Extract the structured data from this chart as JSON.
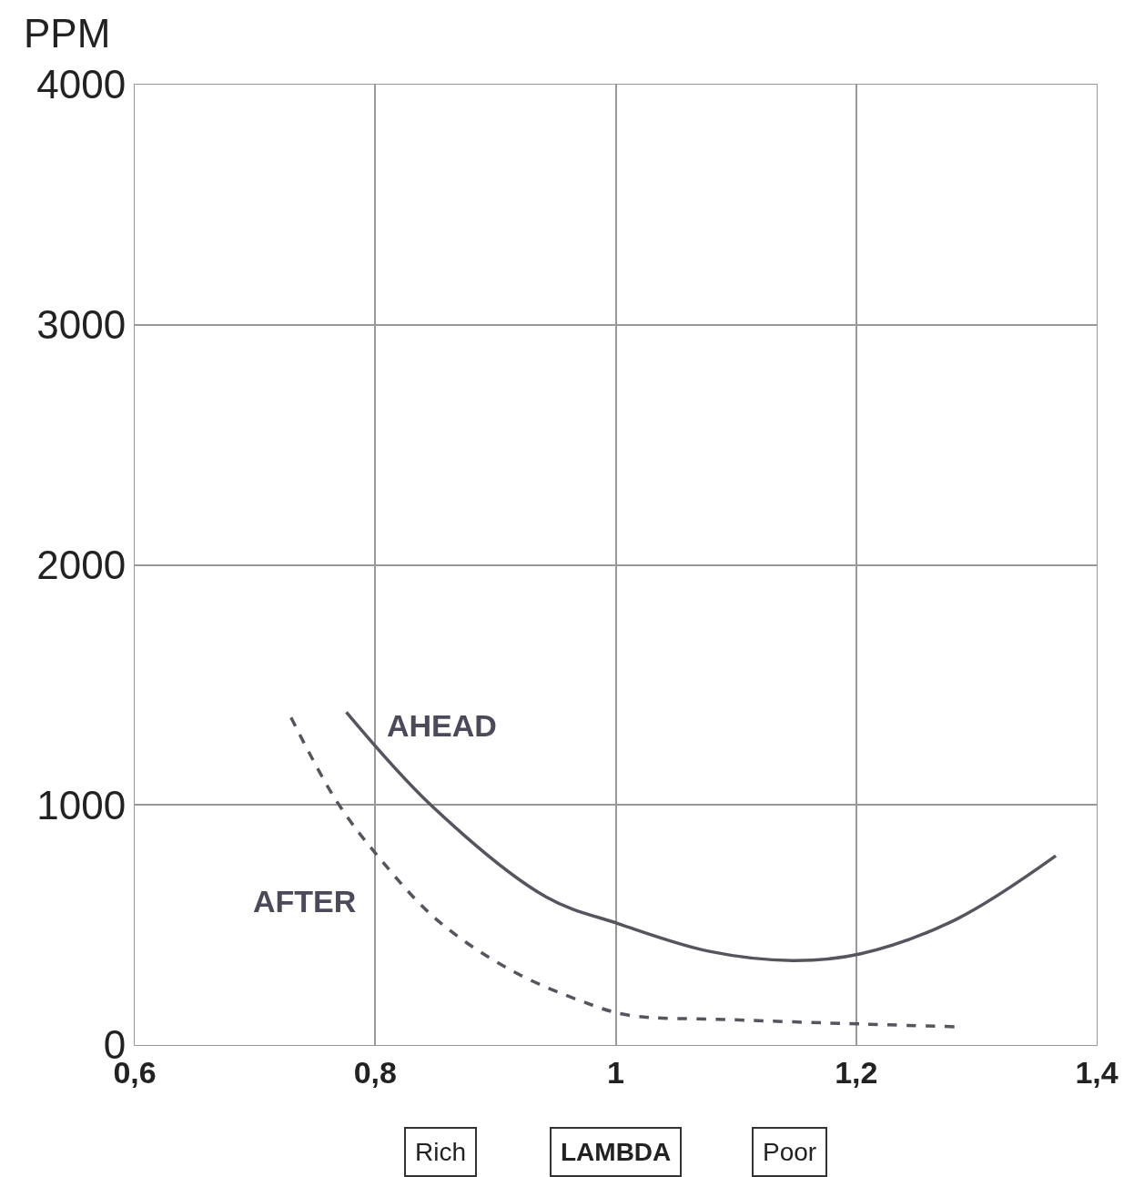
{
  "chart_data": {
    "type": "line",
    "ylabel": "PPM",
    "xlabel": "LAMBDA",
    "annotations": [
      "Rich",
      "Poor"
    ],
    "xlim": [
      0.6,
      1.4
    ],
    "xticks": [
      {
        "value": 0.6,
        "label": "0,6"
      },
      {
        "value": 0.8,
        "label": "0,8"
      },
      1,
      {
        "value": 1.2,
        "label": "1,2"
      },
      {
        "value": 1.4,
        "label": "1,4"
      }
    ],
    "ylim": [
      0,
      4000
    ],
    "yticks": [
      0,
      1000,
      2000,
      3000,
      4000
    ],
    "grid": true,
    "legend": false,
    "marker": "none",
    "series": [
      {
        "name": "AHEAD",
        "color": "#555560",
        "line_style": "solid",
        "x": [
          0.776,
          0.847,
          0.942,
          1.003,
          1.078,
          1.147,
          1.203,
          1.283,
          1.366
        ],
        "values": [
          1386,
          996,
          617,
          504,
          390,
          352,
          379,
          523,
          788
        ]
      },
      {
        "name": "AFTER",
        "color": "#555560",
        "line_style": "dashed",
        "x": [
          0.73,
          0.768,
          0.802,
          0.851,
          0.912,
          0.972,
          1.01,
          1.093,
          1.207,
          1.283
        ],
        "values": [
          1364,
          1015,
          788,
          523,
          314,
          182,
          125,
          106,
          87,
          76
        ]
      }
    ]
  }
}
